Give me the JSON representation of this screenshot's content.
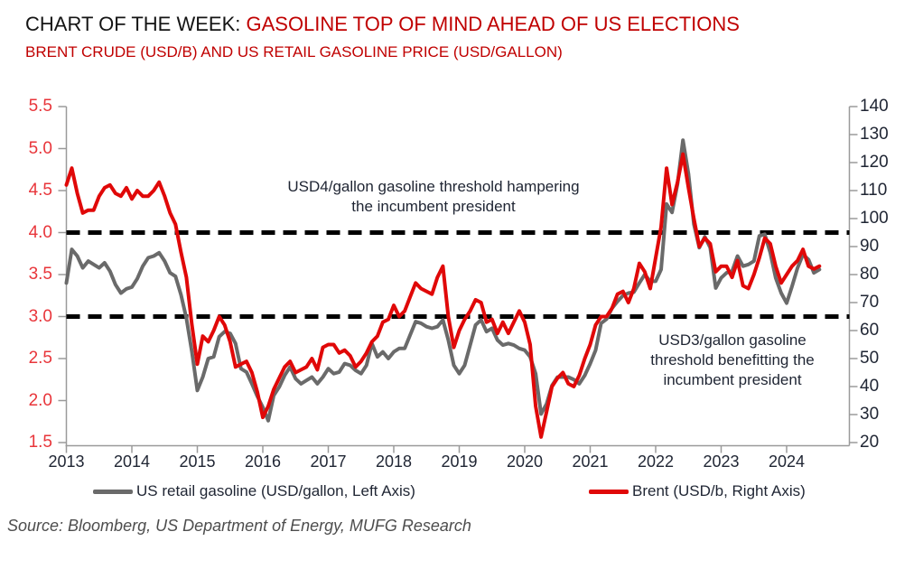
{
  "header": {
    "title_prefix": "CHART OF THE WEEK: ",
    "title_main": "GASOLINE TOP OF MIND AHEAD OF US ELECTIONS",
    "subtitle": "BRENT CRUDE (USD/B) AND US RETAIL GASOLINE PRICE (USD/GALLON)"
  },
  "footer": {
    "source": "Source: Bloomberg, US Department of Energy, MUFG Research"
  },
  "colors": {
    "title_red": "#c00000",
    "left_axis_red": "#e8353a",
    "gasoline_gray": "#6a6a6a",
    "brent_red": "#e00808",
    "threshold_black": "#000000",
    "axis_line": "#9a9a9a",
    "text_dark": "#1f2533"
  },
  "chart_data": {
    "type": "line",
    "frequency": "monthly",
    "x_first": "2013-01",
    "x_last": "2024-07",
    "x_ticks": [
      "2013",
      "2014",
      "2015",
      "2016",
      "2017",
      "2018",
      "2019",
      "2020",
      "2021",
      "2022",
      "2023",
      "2024"
    ],
    "left_axis": {
      "min": 1.5,
      "max": 5.5,
      "ticks": [
        "5.5",
        "5.0",
        "4.5",
        "4.0",
        "3.5",
        "3.0",
        "2.5",
        "2.0",
        "1.5"
      ]
    },
    "right_axis": {
      "min": 20,
      "max": 140,
      "ticks": [
        "140",
        "130",
        "120",
        "110",
        "100",
        "90",
        "80",
        "70",
        "60",
        "50",
        "40",
        "30",
        "20"
      ]
    },
    "thresholds": [
      {
        "axis": "left",
        "value": 4.0
      },
      {
        "axis": "left",
        "value": 3.0
      }
    ],
    "annotations": [
      {
        "text": "USD4/gallon gasoline threshold hampering\nthe incumbent president"
      },
      {
        "text": "USD3/gallon gasoline\nthreshold benefitting the\nincumbent president"
      }
    ],
    "legend": [
      {
        "label": "US retail gasoline (USD/gallon, Left Axis)",
        "color": "#6a6a6a"
      },
      {
        "label": "Brent (USD/b, Right Axis)",
        "color": "#e00808"
      }
    ],
    "series": [
      {
        "name": "US retail gasoline (USD/gallon, Left Axis)",
        "axis": "left",
        "color": "#6a6a6a",
        "values": [
          3.4,
          3.8,
          3.72,
          3.58,
          3.66,
          3.62,
          3.58,
          3.64,
          3.54,
          3.38,
          3.28,
          3.33,
          3.35,
          3.45,
          3.6,
          3.7,
          3.72,
          3.76,
          3.66,
          3.52,
          3.48,
          3.26,
          2.98,
          2.58,
          2.12,
          2.28,
          2.5,
          2.52,
          2.76,
          2.82,
          2.8,
          2.68,
          2.38,
          2.34,
          2.2,
          2.05,
          1.92,
          1.76,
          2.06,
          2.16,
          2.3,
          2.4,
          2.26,
          2.2,
          2.24,
          2.28,
          2.2,
          2.28,
          2.38,
          2.32,
          2.34,
          2.44,
          2.42,
          2.36,
          2.32,
          2.42,
          2.68,
          2.52,
          2.58,
          2.5,
          2.58,
          2.62,
          2.62,
          2.78,
          2.94,
          2.92,
          2.88,
          2.86,
          2.88,
          2.96,
          2.72,
          2.42,
          2.32,
          2.42,
          2.66,
          2.9,
          2.96,
          2.82,
          2.86,
          2.72,
          2.66,
          2.68,
          2.66,
          2.62,
          2.6,
          2.52,
          2.32,
          1.84,
          1.96,
          2.18,
          2.28,
          2.28,
          2.28,
          2.25,
          2.2,
          2.3,
          2.44,
          2.6,
          2.92,
          2.97,
          3.1,
          3.18,
          3.25,
          3.28,
          3.29,
          3.4,
          3.5,
          3.42,
          3.42,
          3.56,
          4.34,
          4.24,
          4.58,
          5.1,
          4.7,
          4.1,
          3.82,
          3.95,
          3.82,
          3.34,
          3.46,
          3.52,
          3.54,
          3.72,
          3.6,
          3.62,
          3.66,
          3.96,
          3.98,
          3.76,
          3.46,
          3.28,
          3.16,
          3.36,
          3.58,
          3.74,
          3.68,
          3.52,
          3.56
        ]
      },
      {
        "name": "Brent (USD/b, Right Axis)",
        "axis": "right",
        "color": "#e00808",
        "values": [
          112,
          118,
          109,
          102,
          103,
          103,
          108,
          111,
          112,
          109,
          108,
          111,
          107,
          110,
          108,
          108,
          110,
          113,
          108,
          102,
          98,
          88,
          79,
          62,
          48,
          58,
          56,
          60,
          65,
          62,
          56,
          47,
          48,
          49,
          45,
          38,
          29,
          33,
          39,
          43,
          47,
          49,
          45,
          46,
          47,
          50,
          46,
          54,
          55,
          55,
          52,
          53,
          51,
          47,
          49,
          52,
          56,
          58,
          63,
          64,
          69,
          65,
          67,
          72,
          77,
          75,
          74,
          73,
          79,
          83,
          65,
          54,
          60,
          64,
          67,
          71,
          70,
          63,
          64,
          59,
          63,
          59,
          63,
          67,
          63,
          55,
          33,
          22,
          31,
          40,
          43,
          45,
          41,
          40,
          44,
          50,
          55,
          62,
          65,
          65,
          68,
          73,
          74,
          70,
          75,
          84,
          81,
          75,
          86,
          97,
          118,
          105,
          113,
          123,
          111,
          100,
          90,
          93,
          91,
          81,
          83,
          83,
          79,
          85,
          76,
          75,
          80,
          86,
          93,
          91,
          83,
          77,
          80,
          83,
          85,
          89,
          83,
          82,
          83
        ]
      }
    ]
  }
}
